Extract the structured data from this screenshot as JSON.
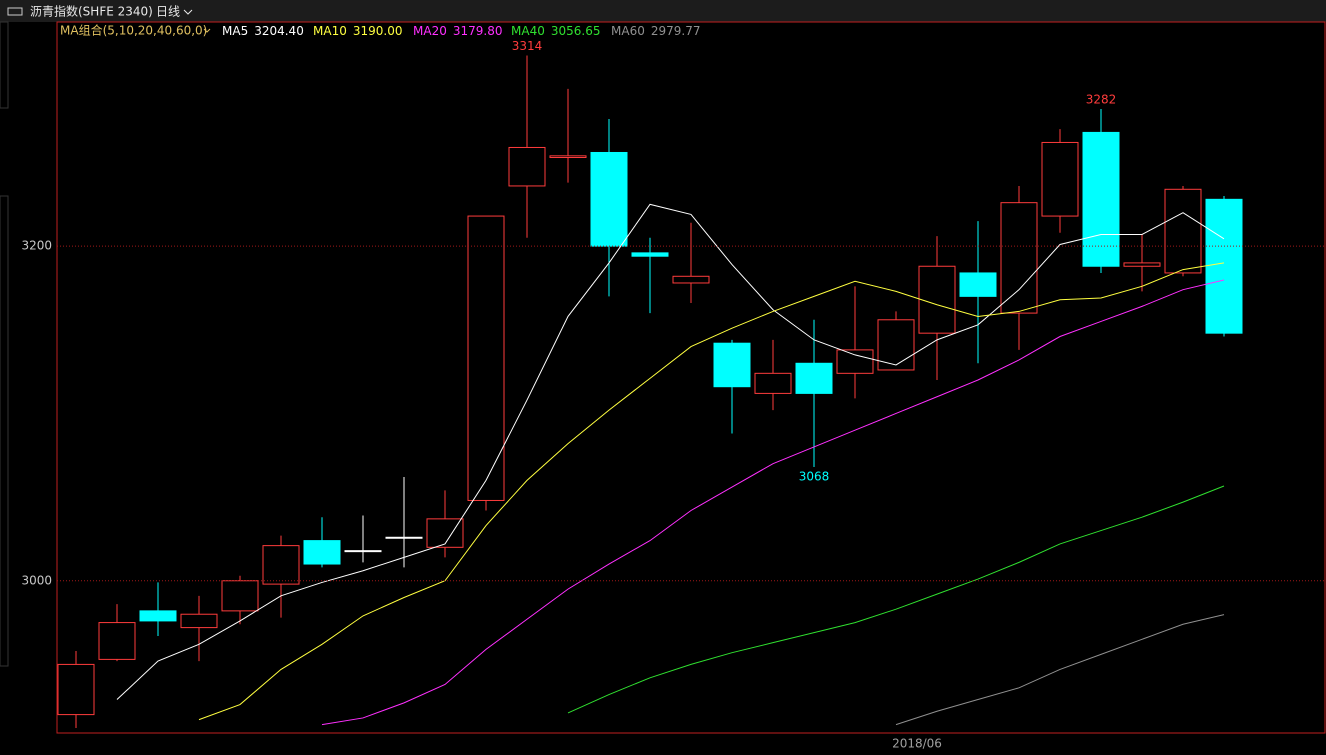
{
  "header": {
    "instrument": "沥青指数(SHFE 2340)",
    "period": "日线"
  },
  "chart_data": {
    "type": "candlestick",
    "ma_group_label": "MA组合(5,10,20,40,60,0)",
    "up_color": "#ff3c3c",
    "down_color": "#00ffff",
    "flat_color": "#ffffff",
    "categories": [
      null,
      null,
      null,
      null,
      null,
      null,
      null,
      null,
      null,
      null,
      null,
      null,
      null,
      null,
      null,
      null,
      null,
      null,
      null,
      null,
      null,
      "2018/06",
      null,
      null,
      null,
      null,
      null,
      null,
      null
    ],
    "open": [
      2920,
      2953,
      2982,
      2972,
      2982,
      2998,
      3024,
      3018,
      3026,
      3020,
      3048,
      3236,
      3253,
      3256,
      3196,
      3178,
      3142,
      3112,
      3130,
      3124,
      3126,
      3148,
      3184,
      3160,
      3218,
      3268,
      3188,
      3184,
      3228
    ],
    "high": [
      2958,
      2986,
      2999,
      2991,
      3003,
      3027,
      3038,
      3039,
      3062,
      3054,
      3218,
      3314,
      3294,
      3276,
      3205,
      3214,
      3144,
      3144,
      3156,
      3176,
      3161,
      3206,
      3215,
      3236,
      3270,
      3282,
      3207,
      3236,
      3230
    ],
    "low": [
      2912,
      2952,
      2967,
      2952,
      2974,
      2978,
      3008,
      3011,
      3008,
      3014,
      3042,
      3205,
      3238,
      3170,
      3160,
      3166,
      3088,
      3102,
      3068,
      3109,
      3126,
      3120,
      3130,
      3138,
      3208,
      3184,
      3173,
      3182,
      3146
    ],
    "close": [
      2950,
      2975,
      2976,
      2980,
      3000,
      3021,
      3010,
      3018,
      3026,
      3037,
      3218,
      3259,
      3254,
      3200,
      3194,
      3182,
      3116,
      3124,
      3112,
      3138,
      3156,
      3188,
      3170,
      3226,
      3262,
      3188,
      3190,
      3234,
      3148
    ],
    "series": [
      {
        "name": "MA5",
        "color": "#ffffff",
        "last_label": "3204.40",
        "values": [
          null,
          2929,
          2952,
          2962,
          2976,
          2991,
          2999,
          3006,
          3014,
          3022,
          3060,
          3108,
          3158,
          3190,
          3225,
          3219,
          3189,
          3162,
          3144,
          3135,
          3129,
          3144,
          3153,
          3174,
          3201,
          3207,
          3207,
          3220,
          3204.4
        ]
      },
      {
        "name": "MA10",
        "color": "#ffff40",
        "last_label": "3190.00",
        "values": [
          null,
          null,
          null,
          2917,
          2926,
          2947,
          2962,
          2979,
          2990,
          3000,
          3033,
          3060,
          3082,
          3102,
          3121,
          3140,
          3151,
          3161,
          3170,
          3179,
          3173,
          3165,
          3158,
          3161,
          3168,
          3169,
          3176,
          3186,
          3190.0
        ]
      },
      {
        "name": "MA20",
        "color": "#ff30ff",
        "last_label": "3179.80",
        "values": [
          null,
          null,
          null,
          null,
          null,
          null,
          2914,
          2918,
          2927,
          2938,
          2959,
          2977,
          2995,
          3010,
          3024,
          3042,
          3056,
          3070,
          3080,
          3090,
          3100,
          3110,
          3120,
          3132,
          3146,
          3155,
          3164,
          3174,
          3179.8
        ]
      },
      {
        "name": "MA40",
        "color": "#30e030",
        "last_label": "3056.65",
        "values": [
          null,
          null,
          null,
          null,
          null,
          null,
          null,
          null,
          null,
          null,
          null,
          null,
          2921,
          2932,
          2942,
          2950,
          2957,
          2963,
          2969,
          2975,
          2983,
          2992,
          3001,
          3011,
          3022,
          3030,
          3038,
          3047,
          3056.65
        ]
      },
      {
        "name": "MA60",
        "color": "#909090",
        "last_label": "2979.77",
        "values": [
          null,
          null,
          null,
          null,
          null,
          null,
          null,
          null,
          null,
          null,
          null,
          null,
          null,
          null,
          null,
          null,
          null,
          null,
          null,
          null,
          2914,
          2922,
          2929,
          2936,
          2947,
          2956,
          2965,
          2974,
          2979.77
        ]
      }
    ],
    "annotations": [
      {
        "text": "3314",
        "value": 3314
      },
      {
        "text": "3282",
        "value": 3282
      },
      {
        "text": "3068",
        "value": 3068
      }
    ],
    "ylim": [
      2909,
      3334
    ],
    "yticks": [
      3000,
      3200
    ],
    "grid": true
  }
}
